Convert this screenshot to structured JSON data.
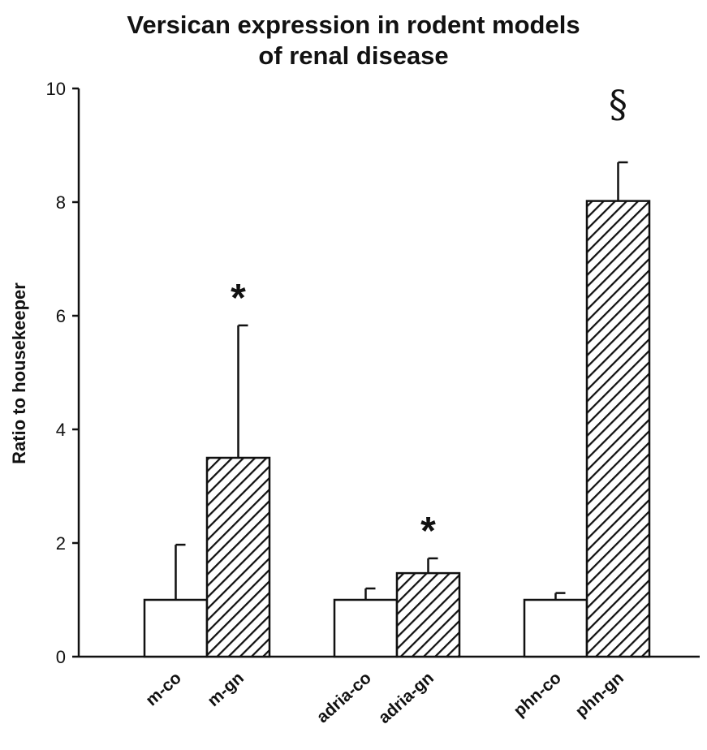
{
  "chart_data": {
    "type": "bar",
    "title_line1": "Versican expression in rodent models",
    "title_line2": "of renal disease",
    "xlabel": "",
    "ylabel": "Ratio to housekeeper",
    "ylim": [
      0,
      10
    ],
    "yticks": [
      "0",
      "2",
      "4",
      "6",
      "8",
      "10"
    ],
    "grid": false,
    "categories": [
      "m-co",
      "m-gn",
      "adria-co",
      "adria-gn",
      "phn-co",
      "phn-gn"
    ],
    "values": [
      1.0,
      3.5,
      1.0,
      1.47,
      1.0,
      8.02
    ],
    "error_upper": [
      1.97,
      5.83,
      1.2,
      1.73,
      1.12,
      8.7
    ],
    "fill": [
      "open",
      "hatched",
      "open",
      "hatched",
      "open",
      "hatched"
    ],
    "annotations": [
      "",
      "*",
      "",
      "*",
      "",
      "§"
    ]
  }
}
